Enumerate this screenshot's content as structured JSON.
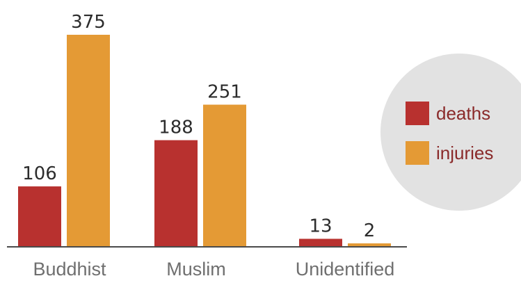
{
  "chart_data": {
    "type": "bar",
    "categories": [
      "Buddhist",
      "Muslim",
      "Unidentified"
    ],
    "series": [
      {
        "name": "deaths",
        "values": [
          106,
          188,
          13
        ],
        "color": "#b8312f"
      },
      {
        "name": "injuries",
        "values": [
          375,
          251,
          2
        ],
        "color": "#e49a35"
      }
    ],
    "ylim": [
      0,
      375
    ],
    "grid": false,
    "legend_position": "right",
    "legend_background": "#e2e2e2",
    "axis_color": "#4a4a4a"
  }
}
